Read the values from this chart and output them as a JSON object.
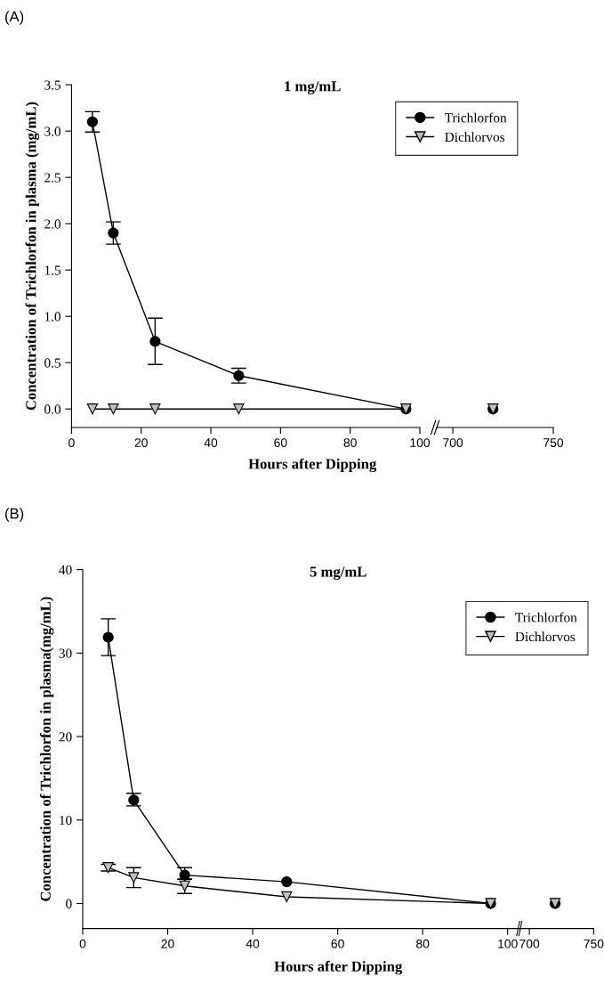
{
  "chart_data": [
    {
      "type": "line",
      "title": "1 mg/mL",
      "xlabel": "Hours after Dipping",
      "ylabel": "Concentration of Trichlorfon in plasma (mg/mL)",
      "annotations": [
        "(A)"
      ],
      "xlim": [
        0,
        100
      ],
      "xticks": [
        0,
        20,
        40,
        60,
        80,
        100
      ],
      "ylim": [
        -0.2,
        3.5
      ],
      "yticks": [
        {
          "value": 0,
          "label": "0.0"
        },
        {
          "value": 0.5,
          "label": "0.5"
        },
        {
          "value": 1,
          "label": "1.0"
        },
        {
          "value": 1.5,
          "label": "1.5"
        },
        {
          "value": 2,
          "label": "2.0"
        },
        {
          "value": 2.5,
          "label": "2.5"
        },
        {
          "value": 3,
          "label": "3.0"
        },
        {
          "value": 3.5,
          "label": "3.5"
        }
      ],
      "legend": "top right",
      "grid": false,
      "series": [
        {
          "name": "Trichlorfon",
          "color": "#000000",
          "marker": "circle",
          "x": [
            6,
            12,
            24,
            48,
            96
          ],
          "values": [
            3.1,
            1.9,
            0.73,
            0.36,
            0
          ],
          "errors": [
            0.11,
            0.12,
            0.25,
            0.08,
            null
          ]
        },
        {
          "name": "Dichlorvos",
          "color": "#c0c0c0",
          "marker": "triangle",
          "x": [
            6,
            12,
            24,
            48,
            96
          ],
          "values": [
            0,
            0,
            0,
            0,
            0
          ]
        }
      ]
    },
    {
      "type": "line",
      "xlim": [
        692,
        750
      ],
      "xticks": [
        700,
        750
      ],
      "ylim": [
        -0.2,
        3.5
      ],
      "tick_labels": "x",
      "grid": false,
      "series": [
        {
          "color": "#000000",
          "marker": "circle",
          "x": [
            720
          ],
          "values": [
            0
          ]
        },
        {
          "color": "#c0c0c0",
          "marker": "triangle",
          "x": [
            720
          ],
          "values": [
            0
          ]
        }
      ]
    },
    {
      "type": "line",
      "title": "5 mg/mL",
      "xlabel": "Hours after Dipping",
      "ylabel": "Concentration of Trichlorfon in plasma(mg/mL)",
      "annotations": [
        "(B)"
      ],
      "xlim": [
        0,
        103
      ],
      "xticks": [
        0,
        20,
        40,
        60,
        80,
        100
      ],
      "ylim": [
        -3,
        40
      ],
      "yticks": [
        0,
        10,
        20,
        30,
        40
      ],
      "legend": "top right",
      "grid": false,
      "series": [
        {
          "name": "Trichlorfon",
          "color": "#000000",
          "marker": "circle",
          "x": [
            6,
            12,
            24,
            48,
            96
          ],
          "values": [
            31.9,
            12.4,
            3.4,
            2.6,
            0
          ],
          "errors": [
            [
              29.7,
              34.1
            ],
            [
              11.7,
              13.2
            ],
            [
              2.9,
              4.3
            ],
            null,
            null
          ]
        },
        {
          "name": "Dichlorvos",
          "color": "#c0c0c0",
          "marker": "triangle",
          "x": [
            6,
            12,
            24,
            48,
            96
          ],
          "values": [
            4.3,
            3.1,
            2.1,
            0.8,
            0
          ],
          "errors": [
            [
              3.9,
              4.7
            ],
            [
              1.9,
              4.3
            ],
            [
              1.2,
              2.9
            ],
            null,
            null
          ]
        }
      ]
    },
    {
      "type": "line",
      "xlim": [
        693,
        750
      ],
      "xticks": [
        700,
        750
      ],
      "ylim": [
        -3,
        40
      ],
      "tick_labels": "x",
      "grid": false,
      "series": [
        {
          "color": "#000000",
          "marker": "circle",
          "x": [
            720
          ],
          "values": [
            0
          ]
        },
        {
          "color": "#c0c0c0",
          "marker": "triangle",
          "x": [
            720
          ],
          "values": [
            0
          ]
        }
      ]
    }
  ]
}
